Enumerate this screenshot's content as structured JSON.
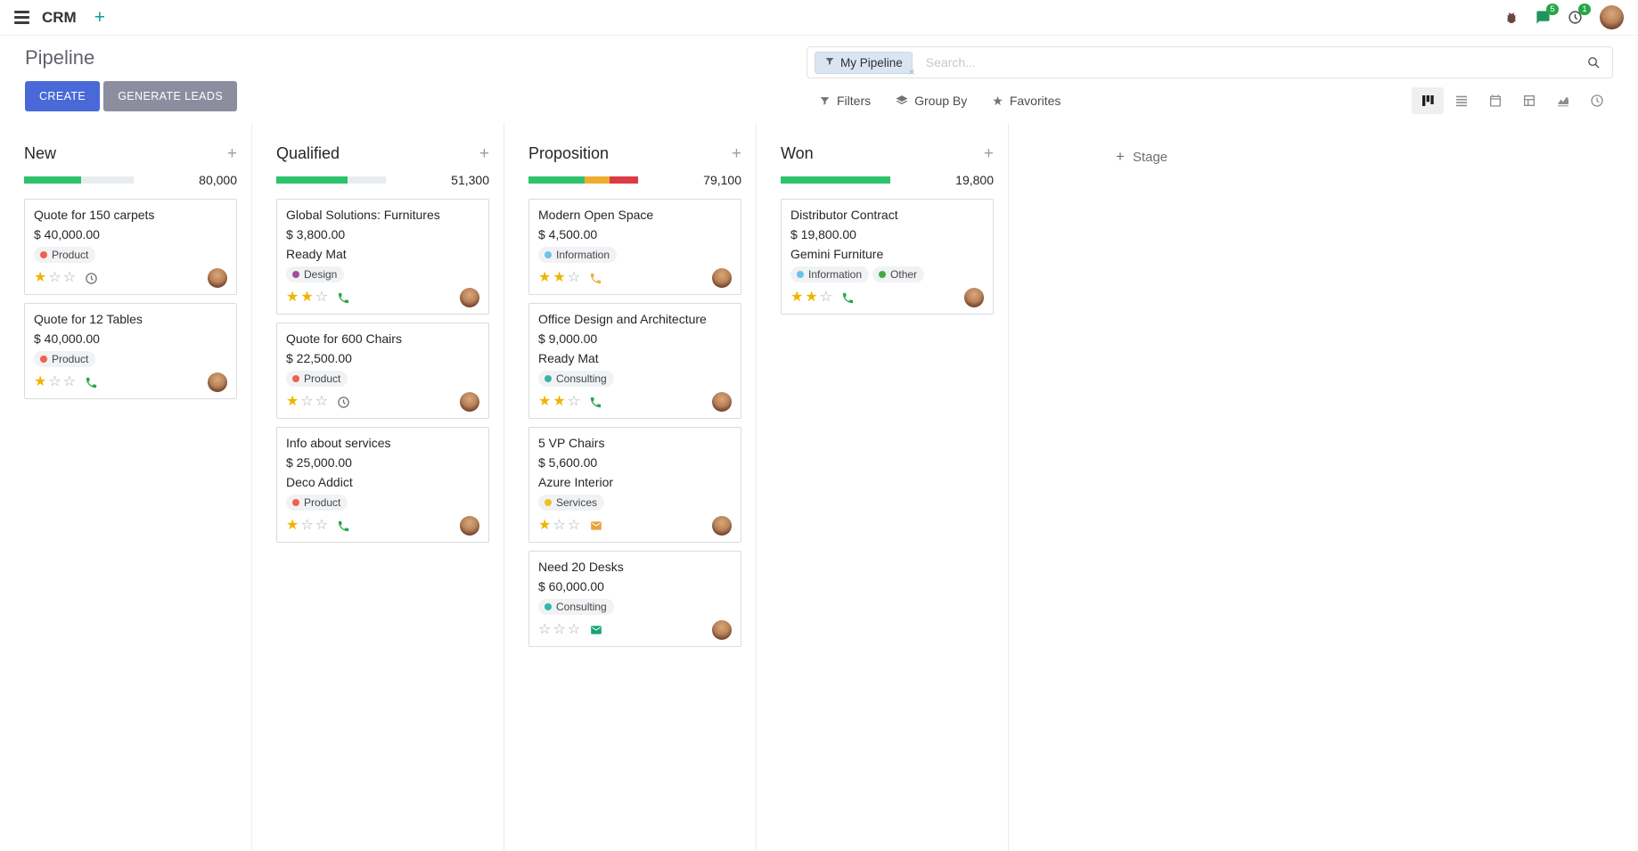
{
  "colors": {
    "primary_button": "#4a69d9",
    "secondary_button": "#8d8d9f",
    "badge": "#28a745",
    "star_filled": "#f0b400",
    "star_empty": "#a8aeb4"
  },
  "navbar": {
    "app": "CRM",
    "messages_badge": "5",
    "activities_badge": "1"
  },
  "control_panel": {
    "title": "Pipeline",
    "buttons": {
      "create": "CREATE",
      "generate_leads": "GENERATE LEADS"
    },
    "search": {
      "facet_label": "My Pipeline",
      "remove_facet": "×",
      "placeholder": "Search..."
    },
    "menus": {
      "filters": "Filters",
      "group_by": "Group By",
      "favorites": "Favorites"
    }
  },
  "kanban": {
    "add_column_label": "Stage",
    "columns": [
      {
        "title": "New",
        "total": "80,000",
        "progress": [
          [
            "#2dc26b",
            52
          ]
        ],
        "cards": [
          {
            "title": "Quote for 150 carpets",
            "amount": "$ 40,000.00",
            "tags": [
              {
                "label": "Product",
                "color": "#f06050"
              }
            ],
            "stars_filled": "★",
            "stars_empty": "☆☆",
            "activity_type": "clock",
            "activity_color": "#6e6e6e"
          },
          {
            "title": "Quote for 12 Tables",
            "amount": "$ 40,000.00",
            "tags": [
              {
                "label": "Product",
                "color": "#f06050"
              }
            ],
            "stars_filled": "★",
            "stars_empty": "☆☆",
            "activity_type": "phone",
            "activity_color": "#28a745"
          }
        ]
      },
      {
        "title": "Qualified",
        "total": "51,300",
        "progress": [
          [
            "#2dc26b",
            65
          ]
        ],
        "cards": [
          {
            "title": "Global Solutions: Furnitures",
            "amount": "$ 3,800.00",
            "partner": "Ready Mat",
            "tags": [
              {
                "label": "Design",
                "color": "#a34f9b"
              }
            ],
            "stars_filled": "★★",
            "stars_empty": "☆",
            "activity_type": "phone",
            "activity_color": "#28a745"
          },
          {
            "title": "Quote for 600 Chairs",
            "amount": "$ 22,500.00",
            "tags": [
              {
                "label": "Product",
                "color": "#f06050"
              }
            ],
            "stars_filled": "★",
            "stars_empty": "☆☆",
            "activity_type": "clock",
            "activity_color": "#6e6e6e"
          },
          {
            "title": "Info about services",
            "amount": "$ 25,000.00",
            "partner": "Deco Addict",
            "tags": [
              {
                "label": "Product",
                "color": "#f06050"
              }
            ],
            "stars_filled": "★",
            "stars_empty": "☆☆",
            "activity_type": "phone",
            "activity_color": "#28a745"
          }
        ]
      },
      {
        "title": "Proposition",
        "total": "79,100",
        "progress": [
          [
            "#2dc26b",
            51
          ],
          [
            "#f0ad2d",
            23
          ],
          [
            "#dc3b45",
            26
          ]
        ],
        "cards": [
          {
            "title": "Modern Open Space",
            "amount": "$ 4,500.00",
            "tags": [
              {
                "label": "Information",
                "color": "#6cc1ed"
              }
            ],
            "stars_filled": "★★",
            "stars_empty": "☆",
            "activity_type": "phone",
            "activity_color": "#f0ad4e"
          },
          {
            "title": "Office Design and Architecture",
            "amount": "$ 9,000.00",
            "partner": "Ready Mat",
            "tags": [
              {
                "label": "Consulting",
                "color": "#35b5ab"
              }
            ],
            "stars_filled": "★★",
            "stars_empty": "☆",
            "activity_type": "phone",
            "activity_color": "#28a745"
          },
          {
            "title": "5 VP Chairs",
            "amount": "$ 5,600.00",
            "partner": "Azure Interior",
            "tags": [
              {
                "label": "Services",
                "color": "#efc021"
              }
            ],
            "stars_filled": "★",
            "stars_empty": "☆☆",
            "activity_type": "envelope",
            "activity_color": "#e9a23b"
          },
          {
            "title": "Need 20 Desks",
            "amount": "$ 60,000.00",
            "tags": [
              {
                "label": "Consulting",
                "color": "#35b5ab"
              }
            ],
            "stars_filled": "",
            "stars_empty": "☆☆☆",
            "activity_type": "envelope",
            "activity_color": "#17a377"
          }
        ]
      },
      {
        "title": "Won",
        "total": "19,800",
        "progress": [
          [
            "#2dc26b",
            100
          ]
        ],
        "cards": [
          {
            "title": "Distributor Contract",
            "amount": "$ 19,800.00",
            "partner": "Gemini Furniture",
            "tags": [
              {
                "label": "Information",
                "color": "#6cc1ed"
              },
              {
                "label": "Other",
                "color": "#45a945"
              }
            ],
            "stars_filled": "★★",
            "stars_empty": "☆",
            "activity_type": "phone",
            "activity_color": "#28a745"
          }
        ]
      }
    ]
  }
}
